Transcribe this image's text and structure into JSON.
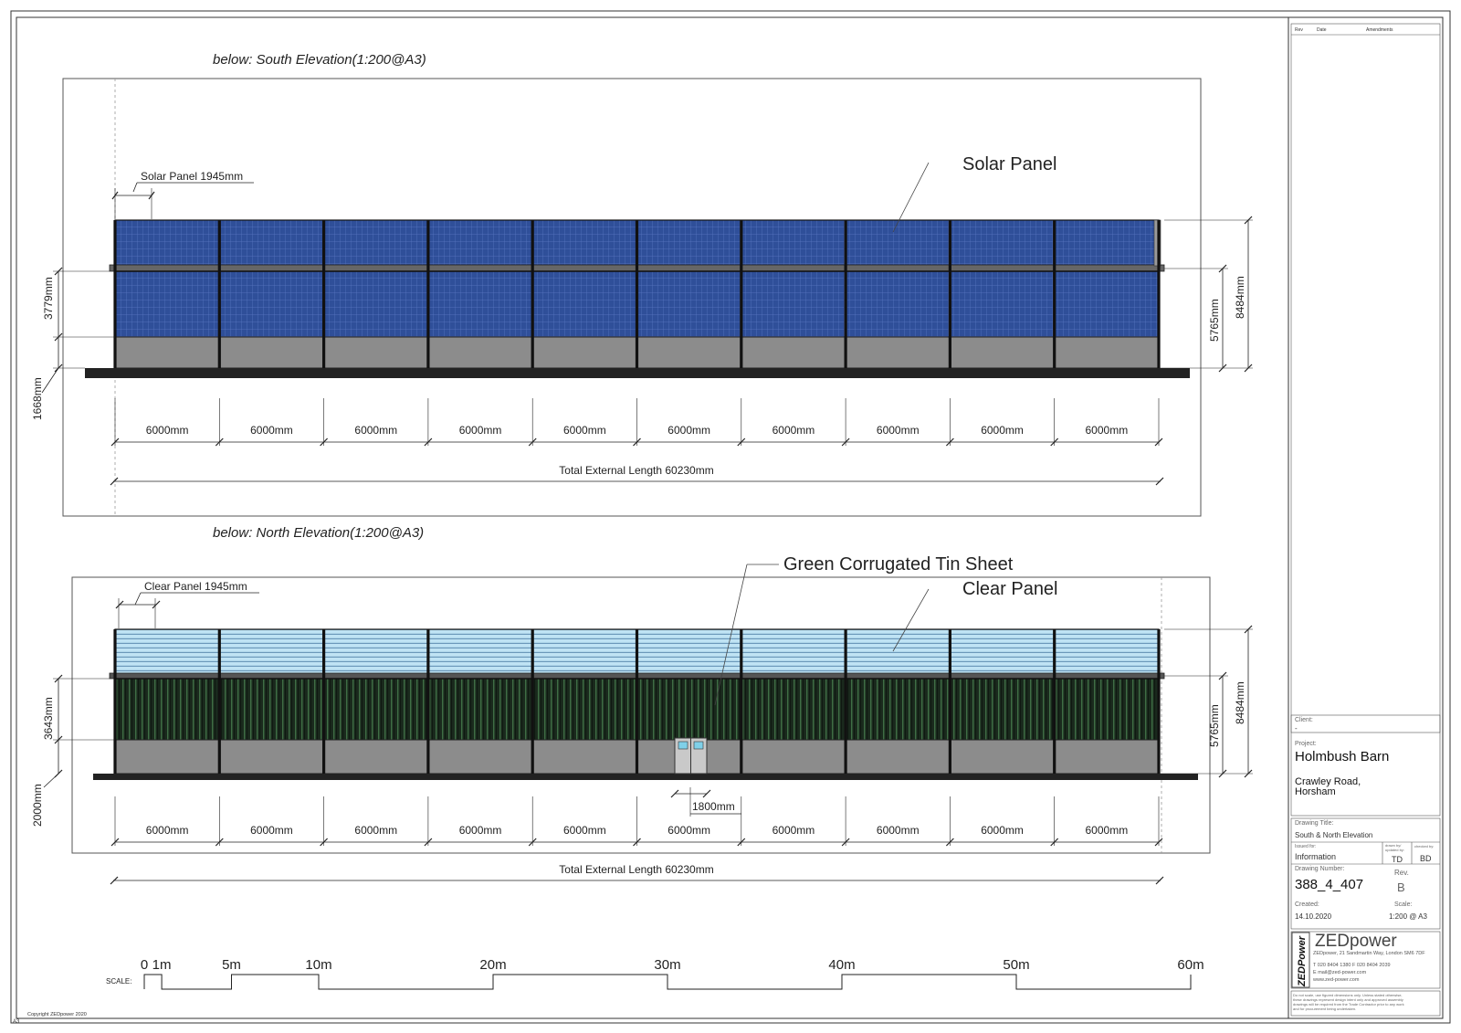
{
  "sheet": {
    "size_mark": "A3",
    "copyright": "Copyright ZEDpower 2020"
  },
  "south": {
    "title": "below: South Elevation(1:200@A3)",
    "panel_label": "Solar Panel 1945mm",
    "callout": "Solar Panel",
    "dim_left_upper": "3779mm",
    "dim_left_lower": "1668mm",
    "dim_right_inner": "5765mm",
    "dim_right_outer": "8484mm",
    "bays": [
      "6000mm",
      "6000mm",
      "6000mm",
      "6000mm",
      "6000mm",
      "6000mm",
      "6000mm",
      "6000mm",
      "6000mm",
      "6000mm"
    ],
    "total": "Total External Length 60230mm"
  },
  "north": {
    "title": "below: North Elevation(1:200@A3)",
    "panel_label": "Clear Panel 1945mm",
    "callout_tin": "Green Corrugated Tin Sheet",
    "callout_clear": "Clear Panel",
    "dim_left_upper": "3643mm",
    "dim_left_lower": "2000mm",
    "dim_right_inner": "5765mm",
    "dim_right_outer": "8484mm",
    "door_dim": "1800mm",
    "bays": [
      "6000mm",
      "6000mm",
      "6000mm",
      "6000mm",
      "6000mm",
      "6000mm",
      "6000mm",
      "6000mm",
      "6000mm",
      "6000mm"
    ],
    "total": "Total External Length 60230mm"
  },
  "scale_bar": {
    "label": "SCALE:",
    "ticks": [
      {
        "m": 0,
        "label": "0"
      },
      {
        "m": 1,
        "label": "1m"
      },
      {
        "m": 5,
        "label": "5m"
      },
      {
        "m": 10,
        "label": "10m"
      },
      {
        "m": 20,
        "label": "20m"
      },
      {
        "m": 30,
        "label": "30m"
      },
      {
        "m": 40,
        "label": "40m"
      },
      {
        "m": 50,
        "label": "50m"
      },
      {
        "m": 60,
        "label": "60m"
      }
    ]
  },
  "title_block": {
    "rev_header": "Rev",
    "date_header": "Date",
    "amend_header": "Amendments",
    "client_label": "Client:",
    "client_value": "-",
    "project_label": "Project:",
    "project_name": "Holmbush Barn",
    "address_1": "Crawley Road,",
    "address_2": "Horsham",
    "drawing_title_label": "Drawing Title:",
    "drawing_title": "South & North Elevation",
    "issued_for_label": "Issued for:",
    "issued_for": "Information",
    "drawn_by_label": "drawn by/ updated by:",
    "drawn_by": "TD",
    "checked_by_label": "checked by:",
    "checked_by": "BD",
    "drawing_number_label": "Drawing Number:",
    "drawing_number": "388_4_407",
    "rev_label": "Rev.",
    "rev": "B",
    "created_label": "Created:",
    "created": "14.10.2020",
    "scale_label": "Scale:",
    "scale": "1:200 @ A3",
    "company_logo": "ZEDPower",
    "company": "ZEDpower",
    "company_address": "ZEDpower, 21 Sandmartin Way, London SM6 7DF",
    "company_phone": "T  020 8404 1380   F  020 8404 2039",
    "company_email": "E mail@zed-power.com",
    "company_web": "www.zed-power.com",
    "disclaimer_1": "Do not scale, use figured dimensions only. Unless stated otherwise,",
    "disclaimer_2": "these drawings represent design intent only and approved assembly",
    "disclaimer_3": "drawings will be required from the Trade Contractor prior to any work",
    "disclaimer_4": "and for procurement being undertaken."
  }
}
